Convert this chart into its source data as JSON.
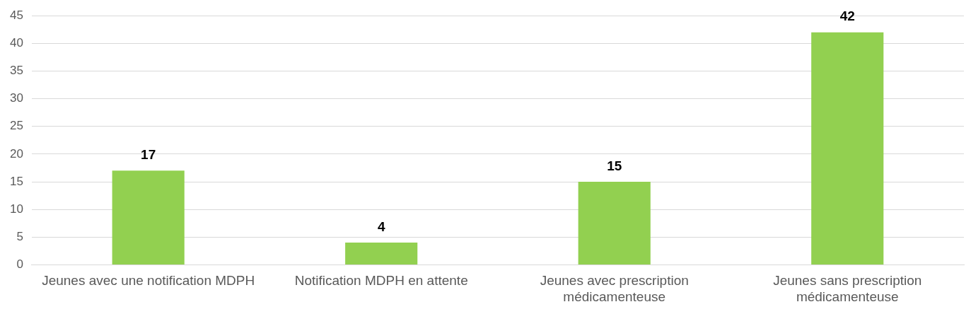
{
  "chart_data": {
    "type": "bar",
    "categories": [
      "Jeunes avec une notification MDPH",
      "Notification MDPH en attente",
      "Jeunes avec prescription médicamenteuse",
      "Jeunes sans prescription médicamenteuse"
    ],
    "values": [
      17,
      4,
      15,
      42
    ],
    "color": "#92d050",
    "ylim": [
      0,
      45
    ],
    "yticks": [
      0,
      5,
      10,
      15,
      20,
      25,
      30,
      35,
      40,
      45
    ],
    "grid": "y",
    "legend": false,
    "data_labels": true
  }
}
